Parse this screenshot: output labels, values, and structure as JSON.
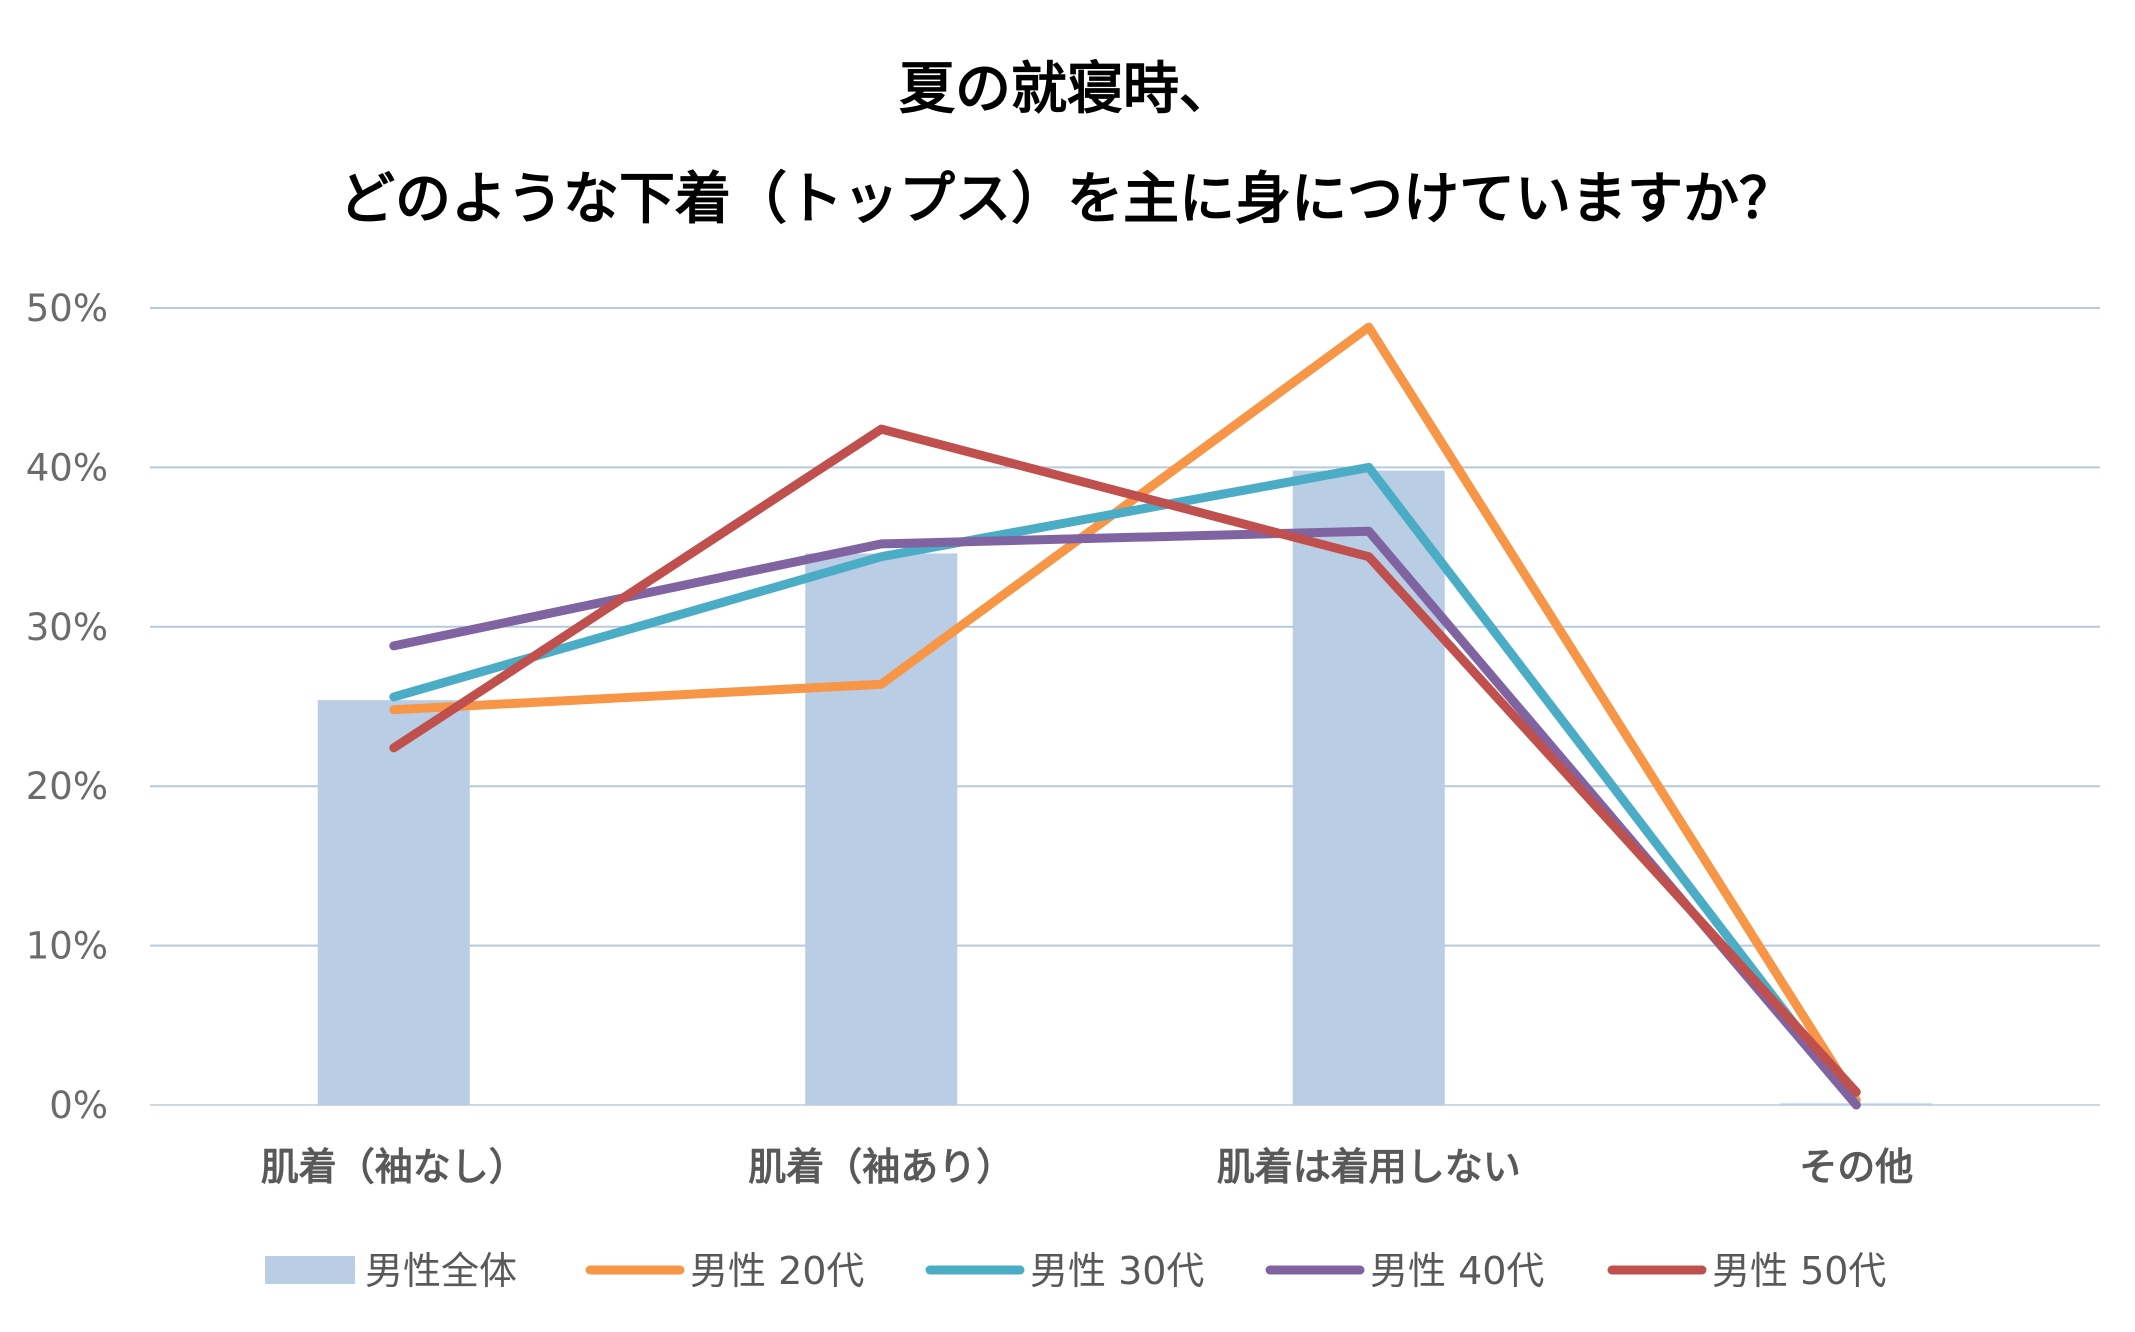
{
  "chart_data": {
    "type": "bar",
    "title_lines": [
      "夏の就寝時、",
      "どのような下着（トップス）を主に身につけていますか？"
    ],
    "categories": [
      "肌着（袖なし）",
      "肌着（袖あり）",
      "肌着は着用しない",
      "その他"
    ],
    "yticks": [
      "0%",
      "10%",
      "20%",
      "30%",
      "40%",
      "50%"
    ],
    "ylim": [
      0,
      50
    ],
    "grid": true,
    "legend_position": "bottom",
    "series": [
      {
        "name": "男性全体",
        "kind": "bar",
        "color": "#b9cde4",
        "values": [
          25.4,
          34.6,
          39.8,
          0.1
        ]
      },
      {
        "name": "男性 20代",
        "kind": "line",
        "color": "#f79646",
        "values": [
          24.8,
          26.4,
          48.8,
          0.3
        ]
      },
      {
        "name": "男性 30代",
        "kind": "line",
        "color": "#4bacc6",
        "values": [
          25.6,
          34.4,
          40.0,
          0.0
        ]
      },
      {
        "name": "男性 40代",
        "kind": "line",
        "color": "#8064a2",
        "values": [
          28.8,
          35.2,
          36.0,
          0.0
        ]
      },
      {
        "name": "男性 50代",
        "kind": "line",
        "color": "#c0504d",
        "values": [
          22.4,
          42.4,
          34.4,
          0.8
        ]
      }
    ]
  }
}
